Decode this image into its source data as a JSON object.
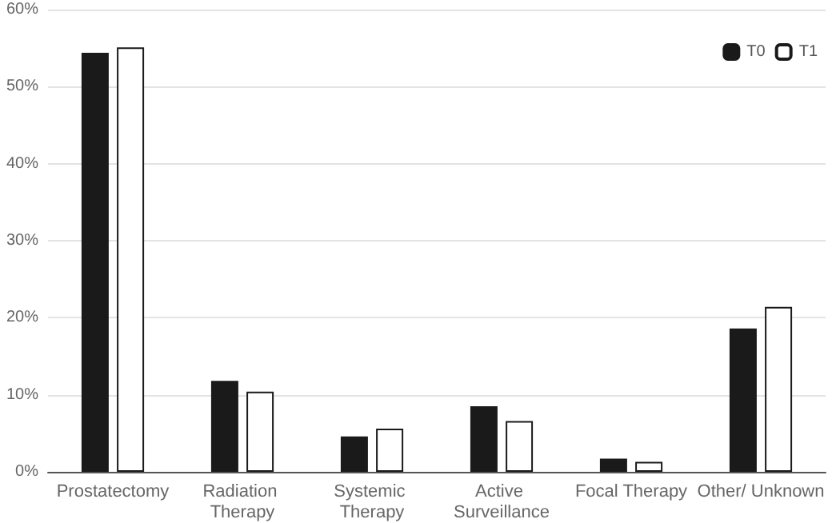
{
  "chart_data": {
    "type": "bar",
    "categories": [
      "Prostatectomy",
      "Radiation Therapy",
      "Systemic Therapy",
      "Active Surveillance",
      "Focal Therapy",
      "Other/ Unknown"
    ],
    "series": [
      {
        "name": "T0",
        "color": "#1a1a1a",
        "values": [
          54.4,
          11.8,
          4.6,
          8.5,
          1.7,
          18.6
        ]
      },
      {
        "name": "T1",
        "color": "#ffffff",
        "values": [
          55.1,
          10.4,
          5.6,
          6.6,
          1.3,
          21.4
        ]
      }
    ],
    "ylim": [
      0,
      60
    ],
    "yticks": [
      {
        "value": 0,
        "label": "0%"
      },
      {
        "value": 10,
        "label": "10%"
      },
      {
        "value": 20,
        "label": "20%"
      },
      {
        "value": 30,
        "label": "30%"
      },
      {
        "value": 40,
        "label": "40%"
      },
      {
        "value": 50,
        "label": "50%"
      },
      {
        "value": 60,
        "label": "60%"
      }
    ],
    "grid": "y",
    "legend": "top right"
  }
}
